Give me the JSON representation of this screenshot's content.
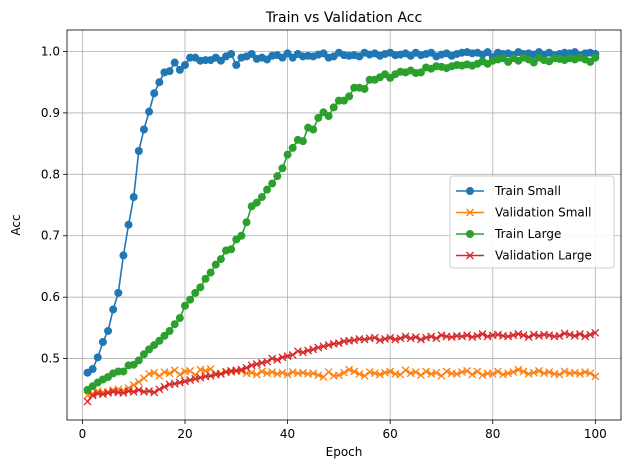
{
  "chart_data": {
    "type": "line",
    "title": "Train vs Validation Acc",
    "xlabel": "Epoch",
    "ylabel": "Acc",
    "xlim": [
      -3,
      105
    ],
    "ylim": [
      0.4,
      1.035
    ],
    "x_ticks": [
      0,
      20,
      40,
      60,
      80,
      100
    ],
    "y_ticks": [
      0.5,
      0.6,
      0.7,
      0.8,
      0.9,
      1.0
    ],
    "x_tick_labels": [
      "0",
      "20",
      "40",
      "60",
      "80",
      "100"
    ],
    "y_tick_labels": [
      "0.5",
      "0.6",
      "0.7",
      "0.8",
      "0.9",
      "1.0"
    ],
    "grid": true,
    "legend_position": "center-right",
    "x": [
      1,
      2,
      3,
      4,
      5,
      6,
      7,
      8,
      9,
      10,
      11,
      12,
      13,
      14,
      15,
      16,
      17,
      18,
      19,
      20,
      21,
      22,
      23,
      24,
      25,
      26,
      27,
      28,
      29,
      30,
      31,
      32,
      33,
      34,
      35,
      36,
      37,
      38,
      39,
      40,
      41,
      42,
      43,
      44,
      45,
      46,
      47,
      48,
      49,
      50,
      51,
      52,
      53,
      54,
      55,
      56,
      57,
      58,
      59,
      60,
      61,
      62,
      63,
      64,
      65,
      66,
      67,
      68,
      69,
      70,
      71,
      72,
      73,
      74,
      75,
      76,
      77,
      78,
      79,
      80,
      81,
      82,
      83,
      84,
      85,
      86,
      87,
      88,
      89,
      90,
      91,
      92,
      93,
      94,
      95,
      96,
      97,
      98,
      99,
      100
    ],
    "series": [
      {
        "name": "Train Small",
        "color": "#1f77b4",
        "marker": "circle",
        "values": [
          0.477,
          0.483,
          0.502,
          0.527,
          0.545,
          0.58,
          0.607,
          0.668,
          0.718,
          0.763,
          0.838,
          0.873,
          0.902,
          0.932,
          0.95,
          0.966,
          0.968,
          0.982,
          0.97,
          0.978,
          0.99,
          0.99,
          0.985,
          0.986,
          0.986,
          0.99,
          0.985,
          0.992,
          0.996,
          0.978,
          0.99,
          0.992,
          0.996,
          0.988,
          0.99,
          0.987,
          0.993,
          0.994,
          0.99,
          0.997,
          0.99,
          0.996,
          0.992,
          0.993,
          0.992,
          0.995,
          0.997,
          0.99,
          0.992,
          0.998,
          0.994,
          0.993,
          0.994,
          0.992,
          0.998,
          0.995,
          0.997,
          0.993,
          0.996,
          0.998,
          0.994,
          0.995,
          0.997,
          0.993,
          0.998,
          0.994,
          0.996,
          0.998,
          0.992,
          0.995,
          0.997,
          0.993,
          0.996,
          0.998,
          0.999,
          0.997,
          0.998,
          0.995,
          0.999,
          0.991,
          0.998,
          0.996,
          0.997,
          0.994,
          0.999,
          0.996,
          0.997,
          0.995,
          0.999,
          0.995,
          0.998,
          0.994,
          0.996,
          0.998,
          0.997,
          0.999,
          0.994,
          0.997,
          0.998,
          0.996
        ]
      },
      {
        "name": "Validation Small",
        "color": "#ff7f0e",
        "marker": "x",
        "values": [
          0.44,
          0.443,
          0.447,
          0.445,
          0.446,
          0.449,
          0.45,
          0.448,
          0.452,
          0.457,
          0.462,
          0.468,
          0.475,
          0.477,
          0.472,
          0.478,
          0.476,
          0.481,
          0.474,
          0.479,
          0.48,
          0.473,
          0.482,
          0.48,
          0.483,
          0.476,
          0.475,
          0.479,
          0.478,
          0.481,
          0.48,
          0.476,
          0.477,
          0.474,
          0.479,
          0.476,
          0.478,
          0.475,
          0.477,
          0.474,
          0.478,
          0.476,
          0.477,
          0.475,
          0.476,
          0.473,
          0.47,
          0.478,
          0.472,
          0.473,
          0.477,
          0.482,
          0.479,
          0.475,
          0.472,
          0.478,
          0.476,
          0.474,
          0.477,
          0.479,
          0.475,
          0.474,
          0.481,
          0.476,
          0.478,
          0.473,
          0.479,
          0.475,
          0.477,
          0.472,
          0.479,
          0.476,
          0.475,
          0.478,
          0.48,
          0.474,
          0.479,
          0.473,
          0.476,
          0.475,
          0.479,
          0.474,
          0.476,
          0.478,
          0.482,
          0.479,
          0.475,
          0.477,
          0.48,
          0.476,
          0.478,
          0.475,
          0.474,
          0.479,
          0.476,
          0.477,
          0.475,
          0.478,
          0.476,
          0.471
        ]
      },
      {
        "name": "Train Large",
        "color": "#2ca02c",
        "marker": "circle",
        "values": [
          0.449,
          0.455,
          0.461,
          0.466,
          0.47,
          0.476,
          0.479,
          0.479,
          0.489,
          0.49,
          0.497,
          0.507,
          0.515,
          0.522,
          0.529,
          0.537,
          0.545,
          0.556,
          0.566,
          0.586,
          0.596,
          0.607,
          0.616,
          0.63,
          0.64,
          0.653,
          0.662,
          0.676,
          0.678,
          0.694,
          0.7,
          0.722,
          0.748,
          0.754,
          0.763,
          0.775,
          0.785,
          0.797,
          0.81,
          0.832,
          0.843,
          0.856,
          0.854,
          0.876,
          0.873,
          0.892,
          0.901,
          0.895,
          0.909,
          0.92,
          0.92,
          0.927,
          0.941,
          0.941,
          0.939,
          0.954,
          0.954,
          0.958,
          0.963,
          0.957,
          0.963,
          0.967,
          0.966,
          0.969,
          0.965,
          0.966,
          0.974,
          0.972,
          0.976,
          0.975,
          0.973,
          0.976,
          0.978,
          0.977,
          0.979,
          0.977,
          0.98,
          0.984,
          0.98,
          0.985,
          0.987,
          0.989,
          0.983,
          0.989,
          0.985,
          0.99,
          0.987,
          0.982,
          0.99,
          0.986,
          0.984,
          0.989,
          0.988,
          0.986,
          0.989,
          0.987,
          0.99,
          0.987,
          0.983,
          0.99
        ]
      },
      {
        "name": "Validation Large",
        "color": "#d62728",
        "marker": "x",
        "values": [
          0.43,
          0.44,
          0.443,
          0.442,
          0.444,
          0.446,
          0.445,
          0.444,
          0.447,
          0.446,
          0.449,
          0.446,
          0.447,
          0.445,
          0.45,
          0.454,
          0.458,
          0.459,
          0.461,
          0.463,
          0.465,
          0.467,
          0.469,
          0.471,
          0.472,
          0.474,
          0.475,
          0.478,
          0.48,
          0.48,
          0.482,
          0.485,
          0.489,
          0.491,
          0.493,
          0.495,
          0.5,
          0.498,
          0.502,
          0.504,
          0.506,
          0.512,
          0.51,
          0.513,
          0.515,
          0.518,
          0.52,
          0.522,
          0.524,
          0.525,
          0.528,
          0.529,
          0.53,
          0.532,
          0.531,
          0.533,
          0.534,
          0.53,
          0.532,
          0.534,
          0.531,
          0.533,
          0.536,
          0.533,
          0.535,
          0.531,
          0.534,
          0.536,
          0.533,
          0.538,
          0.536,
          0.535,
          0.537,
          0.536,
          0.538,
          0.535,
          0.537,
          0.54,
          0.536,
          0.538,
          0.539,
          0.537,
          0.536,
          0.538,
          0.54,
          0.538,
          0.535,
          0.539,
          0.537,
          0.539,
          0.538,
          0.536,
          0.537,
          0.541,
          0.539,
          0.537,
          0.54,
          0.536,
          0.539,
          0.542
        ]
      }
    ]
  }
}
